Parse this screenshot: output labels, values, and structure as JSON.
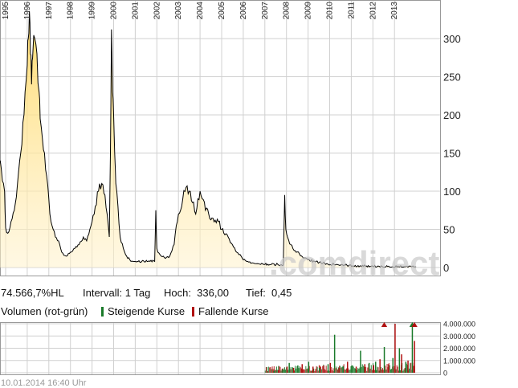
{
  "chart_data": [
    {
      "type": "area",
      "ylim": [
        0,
        350
      ],
      "y_ticks": [
        0,
        50,
        100,
        150,
        200,
        250,
        300
      ],
      "y_tick_labels": [
        "0",
        "50",
        "100",
        "150",
        "200",
        "250",
        "300"
      ],
      "x_ticks": [
        "1995",
        "1996",
        "1997",
        "1998",
        "1999",
        "2000",
        "2001",
        "2002",
        "2003",
        "2004",
        "2005",
        "2006",
        "2007",
        "2008",
        "2009",
        "2010",
        "2011",
        "2012",
        "2013"
      ],
      "grid": true,
      "fill_color": "#ffd966",
      "line_color": "#000000",
      "series": [
        {
          "x": [
            1994.5,
            1994.6,
            1994.75,
            1994.95,
            1995.0,
            1995.1,
            1995.25,
            1995.4,
            1995.55,
            1995.7,
            1995.8,
            1995.9,
            1996.0,
            1996.05,
            1996.1,
            1996.15,
            1996.2,
            1996.25,
            1996.35,
            1996.45,
            1996.55,
            1996.6,
            1996.7,
            1996.8,
            1996.9,
            1997.0,
            1997.1,
            1997.2,
            1997.3,
            1997.45,
            1997.6,
            1997.8,
            1998.0,
            1998.2,
            1998.4,
            1998.6,
            1998.75,
            1998.9,
            1999.0,
            1999.15,
            1999.3,
            1999.45,
            1999.6,
            1999.7,
            1999.8,
            1999.85,
            1999.9,
            1999.95,
            2000.0,
            2000.05,
            2000.1,
            2000.2,
            2000.3,
            2000.45,
            2000.6,
            2000.75,
            2000.9,
            2001.0,
            2001.3,
            2001.6,
            2001.9,
            2001.95,
            2002.0,
            2002.05,
            2002.2,
            2002.4,
            2002.6,
            2002.8,
            2002.9,
            2003.0,
            2003.2,
            2003.35,
            2003.5,
            2003.65,
            2003.8,
            2003.9,
            2004.0,
            2004.1,
            2004.25,
            2004.4,
            2004.55,
            2004.7,
            2004.85,
            2005.0,
            2005.1,
            2005.3,
            2005.5,
            2005.7,
            2005.9,
            2006.0,
            2006.2,
            2006.4,
            2006.6,
            2006.8,
            2007.0,
            2007.3,
            2007.6,
            2007.85,
            2007.92,
            2007.97,
            2008.05,
            2008.2,
            2008.4,
            2008.6,
            2008.8,
            2009.0,
            2009.3,
            2009.6,
            2009.9,
            2010.2,
            2010.5,
            2010.8,
            2011.1,
            2011.4,
            2011.7,
            2012.0,
            2012.3,
            2012.6,
            2012.9,
            2013.2,
            2013.5,
            2013.8,
            2014.0
          ],
          "values": [
            115,
            138,
            140,
            100,
            52,
            45,
            60,
            75,
            110,
            150,
            190,
            230,
            265,
            300,
            336,
            280,
            240,
            275,
            300,
            280,
            230,
            195,
            170,
            150,
            120,
            90,
            60,
            50,
            40,
            35,
            20,
            15,
            20,
            25,
            30,
            40,
            35,
            50,
            60,
            80,
            100,
            110,
            95,
            70,
            40,
            150,
            312,
            230,
            200,
            150,
            110,
            80,
            40,
            25,
            15,
            10,
            8,
            8,
            8,
            8,
            8,
            75,
            25,
            20,
            15,
            12,
            15,
            30,
            55,
            70,
            90,
            105,
            100,
            85,
            70,
            90,
            100,
            90,
            75,
            70,
            65,
            62,
            60,
            50,
            45,
            40,
            30,
            20,
            15,
            10,
            8,
            6,
            5,
            4,
            4,
            4,
            4,
            3,
            95,
            50,
            40,
            30,
            22,
            18,
            12,
            10,
            8,
            6,
            5,
            4,
            3,
            3,
            2,
            2,
            2,
            1.5,
            1.5,
            1,
            1,
            1,
            1,
            1,
            1
          ]
        }
      ]
    },
    {
      "type": "bar",
      "ylim": [
        0,
        4000000
      ],
      "y_ticks": [
        0,
        1000000,
        2000000,
        3000000,
        4000000
      ],
      "y_tick_labels": [
        "0",
        "1.000.000",
        "2.000.000",
        "3.000.000",
        "4.000.000"
      ],
      "grid": true,
      "series": [
        {
          "name": "Steigende Kurse",
          "color": "#1a7a2a",
          "x": [
            2007.4,
            2007.8,
            2008.1,
            2008.5,
            2009.0,
            2009.5,
            2009.9,
            2010.2,
            2010.6,
            2011.0,
            2011.4,
            2011.8,
            2012.1,
            2012.5,
            2012.9,
            2013.2,
            2013.5,
            2013.8
          ],
          "values": [
            150000,
            300000,
            800000,
            600000,
            900000,
            400000,
            700000,
            3100000,
            500000,
            600000,
            1800000,
            800000,
            900000,
            2100000,
            1200000,
            2000000,
            900000,
            4000000
          ]
        },
        {
          "name": "Fallende Kurse",
          "color": "#b01010",
          "x": [
            2007.6,
            2008.0,
            2008.3,
            2008.7,
            2009.2,
            2009.7,
            2010.0,
            2010.4,
            2010.8,
            2011.2,
            2011.6,
            2012.0,
            2012.3,
            2012.7,
            2013.0,
            2013.3,
            2013.6,
            2013.9
          ],
          "values": [
            200000,
            500000,
            400000,
            700000,
            500000,
            600000,
            800000,
            400000,
            900000,
            500000,
            700000,
            600000,
            1100000,
            700000,
            4000000,
            1500000,
            1000000,
            2600000
          ]
        }
      ]
    }
  ],
  "info_bar": {
    "change": "74.566,7%HL",
    "interval": "Intervall: 1 Tag",
    "high": "Hoch:  336,00",
    "low": "Tief:  0,45"
  },
  "volume_legend": {
    "title": "Volumen (rot-grün)",
    "rising": "Steigende Kurse",
    "falling": "Fallende Kurse"
  },
  "watermark": ".comdirect",
  "footer": "10.01.2014 16:40 Uhr"
}
